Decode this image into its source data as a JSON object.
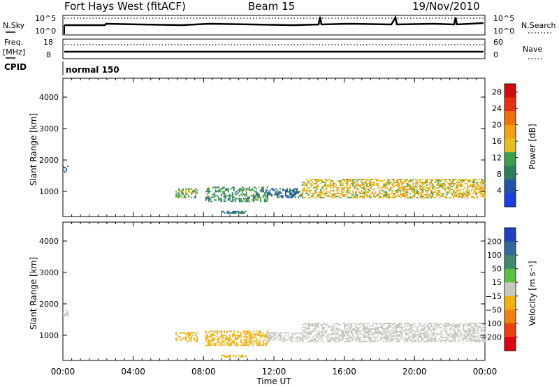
{
  "header": {
    "station": "Fort Hays West (fitACF)",
    "beam": "Beam 15",
    "date": "19/Nov/2010"
  },
  "top_panels": {
    "nsky_label": "N.Sky",
    "nsky_ticks": [
      "10^5",
      "10^0"
    ],
    "nsearch_label": "N.Search",
    "nsearch_ticks": [
      "10^5",
      "10^0"
    ],
    "freq_label": "Freq.",
    "freq_unit": "[MHz]",
    "freq_ticks": [
      "18",
      "8"
    ],
    "nave_label": "Nave",
    "nave_ticks": [
      "60",
      "0"
    ],
    "cpid_label": "CPID",
    "cpid_value": "normal 150"
  },
  "x_axis": {
    "label": "Time UT",
    "ticks": [
      "00:00",
      "04:00",
      "08:00",
      "12:00",
      "16:00",
      "20:00",
      "00:00"
    ]
  },
  "colors": {
    "power_scale": [
      "#1a3fe0",
      "#1f55a8",
      "#2e7d5b",
      "#3aa04a",
      "#e3c020",
      "#f0a010",
      "#f07010",
      "#e83010",
      "#d10a0a"
    ],
    "velocity_scale": [
      "#2040c0",
      "#2e6a9a",
      "#3f8a6a",
      "#5cc040",
      "#c8c8c0",
      "#f0b010",
      "#f08010",
      "#f04010",
      "#e00010"
    ],
    "background": "#ffffff"
  },
  "chart_data": [
    {
      "type": "heatmap",
      "title": "",
      "xlabel": "Time UT",
      "ylabel": "Slant Range [km]",
      "xlim_hours": [
        0,
        24
      ],
      "ylim_km": [
        200,
        4600
      ],
      "yticks": [
        "1000",
        "2000",
        "3000",
        "4000"
      ],
      "colorbar": {
        "label": "Power [dB]",
        "ticks": [
          "4",
          "8",
          "12",
          "16",
          "20",
          "24",
          "28"
        ],
        "range": [
          0,
          30
        ]
      },
      "echo_regions": [
        {
          "t_start": 0.0,
          "t_end": 0.3,
          "range_low_km": 1620,
          "range_high_km": 1820,
          "power_db": 4
        },
        {
          "t_start": 6.4,
          "t_end": 7.6,
          "range_low_km": 800,
          "range_high_km": 1100,
          "power_db": 12
        },
        {
          "t_start": 8.1,
          "t_end": 11.6,
          "range_low_km": 700,
          "range_high_km": 1150,
          "power_db": 10
        },
        {
          "t_start": 11.6,
          "t_end": 13.6,
          "range_low_km": 800,
          "range_high_km": 1100,
          "power_db": 6
        },
        {
          "t_start": 13.6,
          "t_end": 24.0,
          "range_low_km": 800,
          "range_high_km": 1400,
          "power_db": 16
        },
        {
          "t_start": 9.0,
          "t_end": 10.4,
          "range_low_km": 320,
          "range_high_km": 380,
          "power_db": 8
        }
      ]
    },
    {
      "type": "heatmap",
      "title": "",
      "xlabel": "Time UT",
      "ylabel": "Slant Range [km]",
      "xlim_hours": [
        0,
        24
      ],
      "ylim_km": [
        200,
        4600
      ],
      "yticks": [
        "1000",
        "2000",
        "3000",
        "4000"
      ],
      "colorbar": {
        "label": "Velocity [m s⁻¹]",
        "ticks": [
          "200",
          "100",
          "50",
          "15",
          "−15",
          "−50",
          "−100",
          "−200"
        ],
        "range": [
          -250,
          250
        ]
      },
      "echo_regions": [
        {
          "t_start": 0.0,
          "t_end": 0.3,
          "range_low_km": 1620,
          "range_high_km": 1820,
          "velocity": 0
        },
        {
          "t_start": 6.4,
          "t_end": 7.6,
          "range_low_km": 800,
          "range_high_km": 1100,
          "velocity": -40
        },
        {
          "t_start": 8.1,
          "t_end": 11.6,
          "range_low_km": 700,
          "range_high_km": 1150,
          "velocity": -40
        },
        {
          "t_start": 11.6,
          "t_end": 13.6,
          "range_low_km": 800,
          "range_high_km": 1100,
          "velocity": 0
        },
        {
          "t_start": 13.6,
          "t_end": 24.0,
          "range_low_km": 800,
          "range_high_km": 1400,
          "velocity": 0
        },
        {
          "t_start": 9.0,
          "t_end": 10.4,
          "range_low_km": 320,
          "range_high_km": 380,
          "velocity": -40
        }
      ]
    }
  ]
}
